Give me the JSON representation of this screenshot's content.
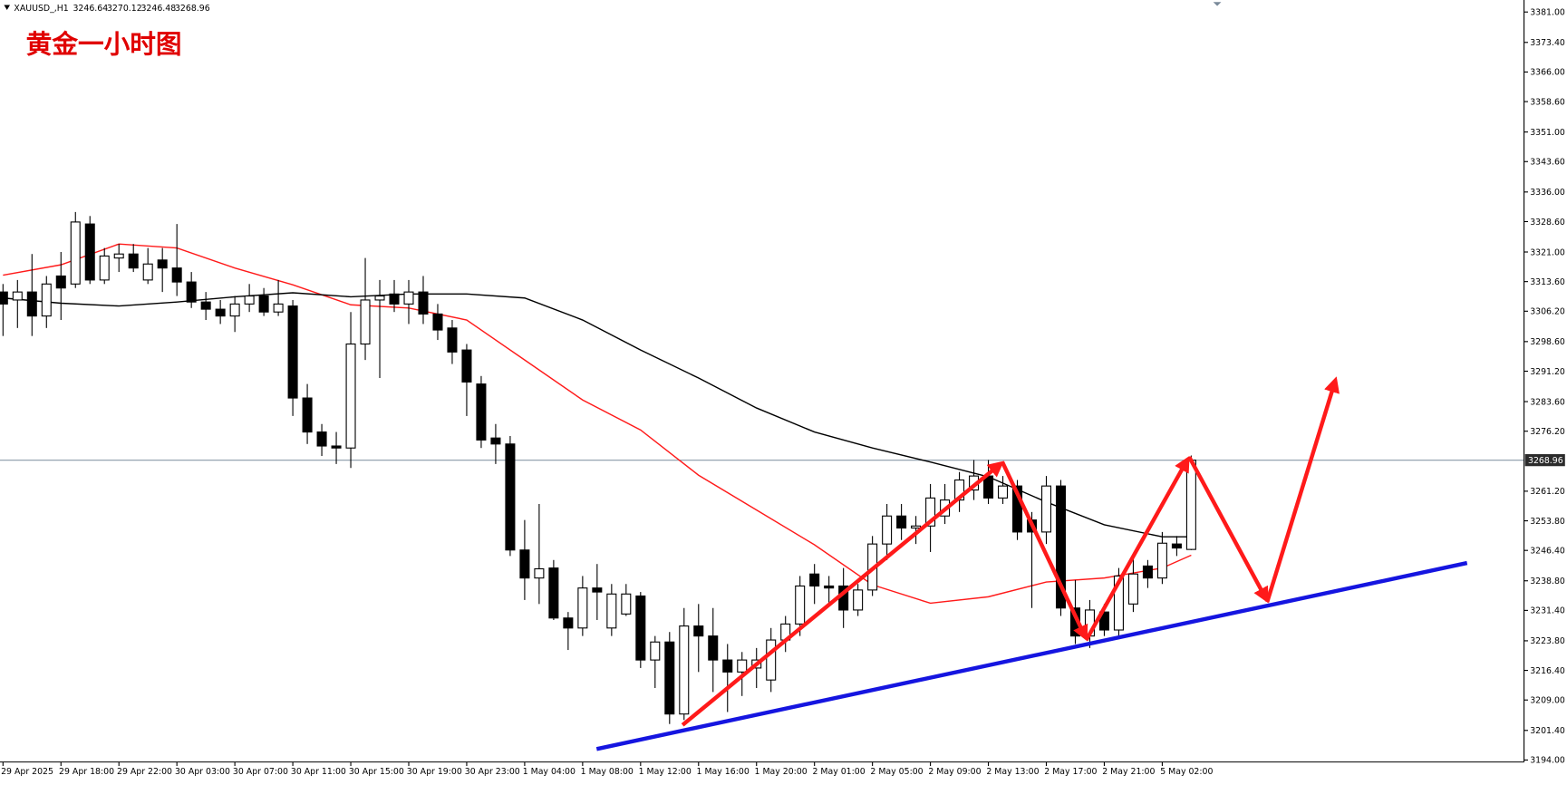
{
  "chart_data": {
    "type": "candlestick",
    "title": "黄金一小时图",
    "symbol": "XAUUSD_,H1",
    "grid": false,
    "up_color": "#ffffff",
    "down_color": "#000000",
    "categories": [
      "29 Apr 2025",
      null,
      null,
      null,
      "29 Apr 18:00",
      null,
      null,
      null,
      "29 Apr 22:00",
      null,
      null,
      null,
      "30 Apr 03:00",
      null,
      null,
      null,
      "30 Apr 07:00",
      null,
      null,
      null,
      "30 Apr 11:00",
      null,
      null,
      null,
      "30 Apr 15:00",
      null,
      null,
      null,
      "30 Apr 19:00",
      null,
      null,
      null,
      "30 Apr 23:00",
      null,
      null,
      null,
      "1 May 04:00",
      null,
      null,
      null,
      "1 May 08:00",
      null,
      null,
      null,
      "1 May 12:00",
      null,
      null,
      null,
      "1 May 16:00",
      null,
      null,
      null,
      "1 May 20:00",
      null,
      null,
      null,
      "2 May 01:00",
      null,
      null,
      null,
      "2 May 05:00",
      null,
      null,
      null,
      "2 May 09:00",
      null,
      null,
      null,
      "2 May 13:00",
      null,
      null,
      null,
      "2 May 17:00",
      null,
      null,
      null,
      "2 May 21:00",
      null,
      null,
      null,
      "5 May 02:00",
      null,
      null
    ],
    "ohlc": {
      "open": [
        3311,
        3309,
        3311,
        3305,
        3315,
        3313,
        3328,
        3314,
        3319.5,
        3320.5,
        3314,
        3319,
        3317,
        3313.5,
        3308.5,
        3306.7,
        3305,
        3308,
        3310,
        3306,
        3307.5,
        3284.5,
        3276,
        3272.5,
        3272,
        3298,
        3309,
        3310.5,
        3308,
        3311,
        3305.5,
        3302,
        3296.5,
        3288,
        3274.5,
        3273,
        3246.5,
        3239.5,
        3242,
        3229.5,
        3227,
        3237,
        3227,
        3230.5,
        3235,
        3219,
        3223.5,
        3205.5,
        3227.5,
        3225,
        3219,
        3216,
        3217,
        3214,
        3224,
        3228,
        3240.5,
        3237.5,
        3237.5,
        3231.5,
        3236.5,
        3248,
        3255,
        3252,
        3252.5,
        3255,
        3259,
        3261.5,
        3265,
        3259.5,
        3262.5,
        3254,
        3251,
        3262.5,
        3232,
        3225,
        3231,
        3226.5,
        3233,
        3242.5,
        3239.5,
        3248,
        3246.64
      ],
      "high": [
        3313,
        3314,
        3320.5,
        3315,
        3321,
        3331,
        3330,
        3322,
        3323,
        3323,
        3322,
        3322,
        3328,
        3316,
        3311,
        3309,
        3310,
        3313,
        3312,
        3314,
        3309,
        3288,
        3278,
        3276,
        3306,
        3319.5,
        3314,
        3314,
        3314,
        3315,
        3308,
        3304,
        3298,
        3290,
        3278,
        3275,
        3254,
        3258,
        3244,
        3231,
        3240,
        3243,
        3238,
        3238,
        3236,
        3225,
        3226,
        3232,
        3233,
        3232,
        3223,
        3221,
        3222,
        3227,
        3230,
        3240,
        3243,
        3240,
        3242,
        3238,
        3250,
        3258,
        3258,
        3255,
        3263,
        3263,
        3266,
        3269,
        3269,
        3265,
        3264,
        3256,
        3265,
        3264,
        3239,
        3234,
        3233,
        3242,
        3245,
        3244,
        3251,
        3250,
        3270.12
      ],
      "low": [
        3300,
        3302,
        3300,
        3302,
        3304,
        3312,
        3313,
        3313,
        3316,
        3316,
        3313,
        3311,
        3310,
        3307,
        3304,
        3303,
        3301,
        3306,
        3305,
        3305,
        3280,
        3273,
        3270,
        3268,
        3267,
        3294,
        3289.5,
        3306,
        3303,
        3303,
        3299,
        3293,
        3280,
        3272,
        3268,
        3245,
        3234,
        3233,
        3229,
        3221.5,
        3225,
        3229,
        3225,
        3230,
        3217,
        3212,
        3203,
        3204,
        3216,
        3211,
        3206,
        3210,
        3212,
        3211,
        3221,
        3225,
        3233,
        3233,
        3227,
        3230,
        3235,
        3244,
        3249,
        3248,
        3246,
        3253,
        3256,
        3259,
        3258,
        3258,
        3249,
        3232,
        3248,
        3230,
        3223,
        3222,
        3225,
        3225,
        3231,
        3237,
        3238,
        3245,
        3246.48
      ],
      "close": [
        3308,
        3311,
        3305,
        3313,
        3312,
        3328.5,
        3314,
        3320,
        3320.5,
        3317,
        3318,
        3317,
        3313.5,
        3308.5,
        3306.7,
        3305,
        3308,
        3310,
        3306,
        3308,
        3284.5,
        3276,
        3272.5,
        3272,
        3298,
        3309,
        3310,
        3308,
        3311,
        3305.5,
        3301.5,
        3296,
        3288.5,
        3274,
        3273,
        3246.5,
        3239.5,
        3241.8,
        3229.5,
        3227,
        3237,
        3236,
        3235.5,
        3235.5,
        3219,
        3223.5,
        3205.5,
        3227.5,
        3225,
        3219,
        3216,
        3219,
        3219,
        3224,
        3228,
        3237.5,
        3237.5,
        3237,
        3231.5,
        3236.5,
        3248,
        3255,
        3252,
        3252.5,
        3259.5,
        3259,
        3264,
        3265,
        3259.5,
        3262.5,
        3251,
        3251,
        3262.5,
        3232,
        3225,
        3231.5,
        3226.5,
        3240,
        3240.5,
        3239.5,
        3248.2,
        3247,
        3268.96
      ]
    },
    "moving_averages": [
      {
        "color": "#ff1a1a",
        "x": [
          0,
          4,
          8,
          12,
          16,
          20,
          24,
          28,
          32,
          36,
          40,
          44,
          48,
          52,
          56,
          60,
          64,
          68,
          72,
          76,
          80,
          82
        ],
        "values": [
          3315.2,
          3317.8,
          3323,
          3322,
          3317,
          3312.8,
          3307.8,
          3307,
          3304,
          3294,
          3284,
          3276.5,
          3265.2,
          3256.5,
          3247.8,
          3237.8,
          3233.2,
          3234.8,
          3238.5,
          3239.5,
          3242,
          3245.2
        ]
      },
      {
        "color": "#000000",
        "x": [
          0,
          4,
          8,
          12,
          16,
          20,
          24,
          28,
          32,
          36,
          40,
          44,
          48,
          52,
          56,
          60,
          64,
          68,
          72,
          76,
          80,
          82
        ],
        "values": [
          3309.5,
          3308.2,
          3307.5,
          3308.5,
          3309.8,
          3310.8,
          3309.8,
          3310.5,
          3310.5,
          3309.5,
          3304,
          3296.5,
          3289.5,
          3282,
          3276,
          3272,
          3268.5,
          3264.8,
          3258.5,
          3252.8,
          3249.8,
          3249.8
        ]
      }
    ],
    "ylim": [
      3193.5,
      3384
    ],
    "yticks": [
      {
        "value": 3381,
        "label": "3381.00"
      },
      {
        "value": 3373.4,
        "label": "3373.40"
      },
      {
        "value": 3366,
        "label": "3366.00"
      },
      {
        "value": 3358.6,
        "label": "3358.60"
      },
      {
        "value": 3351,
        "label": "3351.00"
      },
      {
        "value": 3343.6,
        "label": "3343.60"
      },
      {
        "value": 3336,
        "label": "3336.00"
      },
      {
        "value": 3328.6,
        "label": "3328.60"
      },
      {
        "value": 3321,
        "label": "3321.00"
      },
      {
        "value": 3313.6,
        "label": "3313.60"
      },
      {
        "value": 3306.2,
        "label": "3306.20"
      },
      {
        "value": 3298.6,
        "label": "3298.60"
      },
      {
        "value": 3291.2,
        "label": "3291.20"
      },
      {
        "value": 3283.6,
        "label": "3283.60"
      },
      {
        "value": 3276.2,
        "label": "3276.20"
      },
      {
        "value": 3261.2,
        "label": "3261.20"
      },
      {
        "value": 3253.8,
        "label": "3253.80"
      },
      {
        "value": 3246.4,
        "label": "3246.40"
      },
      {
        "value": 3238.8,
        "label": "3238.80"
      },
      {
        "value": 3231.4,
        "label": "3231.40"
      },
      {
        "value": 3223.8,
        "label": "3223.80"
      },
      {
        "value": 3216.4,
        "label": "3216.40"
      },
      {
        "value": 3209,
        "label": "3209.00"
      },
      {
        "value": 3201.4,
        "label": "3201.40"
      },
      {
        "value": 3194,
        "label": "3194.00"
      }
    ]
  }
}
